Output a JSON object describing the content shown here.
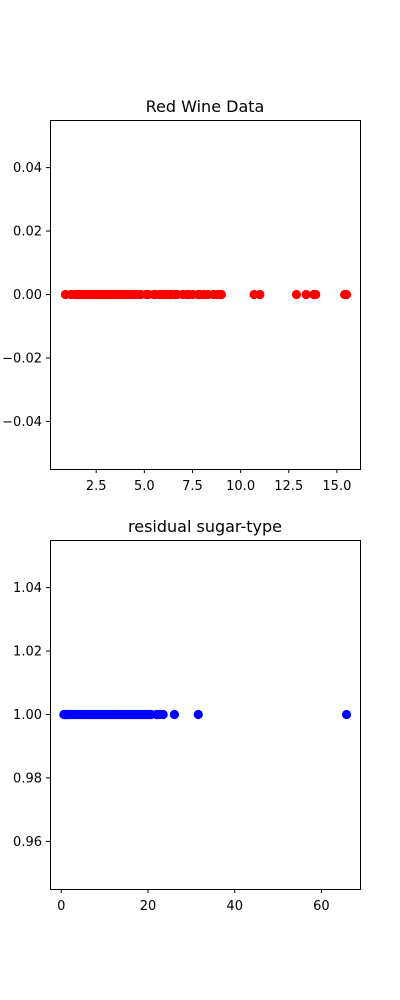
{
  "chart_data": [
    {
      "type": "scatter",
      "title": "Red Wine Data",
      "xlabel": "",
      "ylabel": "",
      "xlim": [
        0.1,
        16.2
      ],
      "ylim": [
        -0.055,
        0.055
      ],
      "xticks": [
        2.5,
        5.0,
        7.5,
        10.0,
        12.5,
        15.0
      ],
      "xtick_labels": [
        "2.5",
        "5.0",
        "7.5",
        "10.0",
        "12.5",
        "15.0"
      ],
      "yticks": [
        -0.04,
        -0.02,
        0.0,
        0.02,
        0.04
      ],
      "ytick_labels": [
        "−0.04",
        "−0.02",
        "0.00",
        "0.02",
        "0.04"
      ],
      "grid": false,
      "color": "#ff0000",
      "series": [
        {
          "x": [
            0.9,
            1.2,
            1.4,
            1.5,
            1.6,
            1.7,
            1.8,
            1.9,
            2.0,
            2.1,
            2.2,
            2.3,
            2.4,
            2.5,
            2.6,
            2.7,
            2.8,
            2.9,
            3.0,
            3.1,
            3.2,
            3.3,
            3.4,
            3.5,
            3.6,
            3.7,
            3.8,
            3.9,
            4.0,
            4.1,
            4.2,
            4.3,
            4.4,
            4.5,
            4.6,
            4.8,
            5.1,
            5.2,
            5.5,
            5.6,
            5.8,
            5.9,
            6.0,
            6.1,
            6.2,
            6.3,
            6.4,
            6.6,
            6.7,
            7.0,
            7.2,
            7.3,
            7.5,
            7.8,
            7.9,
            8.1,
            8.3,
            8.6,
            8.8,
            8.9,
            9.0,
            10.7,
            11.0,
            12.9,
            13.4,
            13.8,
            13.9,
            15.4,
            15.5
          ],
          "y": [
            0,
            0,
            0,
            0,
            0,
            0,
            0,
            0,
            0,
            0,
            0,
            0,
            0,
            0,
            0,
            0,
            0,
            0,
            0,
            0,
            0,
            0,
            0,
            0,
            0,
            0,
            0,
            0,
            0,
            0,
            0,
            0,
            0,
            0,
            0,
            0,
            0,
            0,
            0,
            0,
            0,
            0,
            0,
            0,
            0,
            0,
            0,
            0,
            0,
            0,
            0,
            0,
            0,
            0,
            0,
            0,
            0,
            0,
            0,
            0,
            0,
            0,
            0,
            0,
            0,
            0,
            0,
            0,
            0
          ]
        }
      ]
    },
    {
      "type": "scatter",
      "title": "residual sugar-type",
      "xlabel": "",
      "ylabel": "",
      "xlim": [
        -2.6,
        68.9
      ],
      "ylim": [
        0.945,
        1.055
      ],
      "xticks": [
        0,
        20,
        40,
        60
      ],
      "xtick_labels": [
        "0",
        "20",
        "40",
        "60"
      ],
      "yticks": [
        0.96,
        0.98,
        1.0,
        1.02,
        1.04
      ],
      "ytick_labels": [
        "0.96",
        "0.98",
        "1.00",
        "1.02",
        "1.04"
      ],
      "grid": false,
      "color": "#0000ff",
      "series": [
        {
          "x": [
            0.6,
            0.8,
            1.0,
            1.2,
            1.4,
            1.6,
            1.8,
            2.0,
            2.4,
            2.8,
            3.2,
            3.6,
            4.0,
            4.4,
            4.8,
            5.2,
            5.6,
            6.0,
            6.4,
            6.8,
            7.2,
            7.6,
            8.0,
            8.4,
            8.8,
            9.2,
            9.6,
            10.0,
            10.4,
            10.8,
            11.2,
            11.6,
            12.0,
            12.4,
            12.8,
            13.2,
            13.6,
            14.0,
            14.4,
            14.8,
            15.2,
            15.6,
            16.0,
            16.4,
            16.8,
            17.2,
            17.6,
            18.0,
            18.4,
            18.8,
            19.2,
            19.6,
            20.0,
            20.4,
            20.7,
            22.0,
            22.6,
            23.5,
            26.1,
            31.6,
            65.8
          ],
          "y": [
            1,
            1,
            1,
            1,
            1,
            1,
            1,
            1,
            1,
            1,
            1,
            1,
            1,
            1,
            1,
            1,
            1,
            1,
            1,
            1,
            1,
            1,
            1,
            1,
            1,
            1,
            1,
            1,
            1,
            1,
            1,
            1,
            1,
            1,
            1,
            1,
            1,
            1,
            1,
            1,
            1,
            1,
            1,
            1,
            1,
            1,
            1,
            1,
            1,
            1,
            1,
            1,
            1,
            1,
            1,
            1,
            1,
            1,
            1,
            1,
            1
          ]
        }
      ]
    }
  ]
}
